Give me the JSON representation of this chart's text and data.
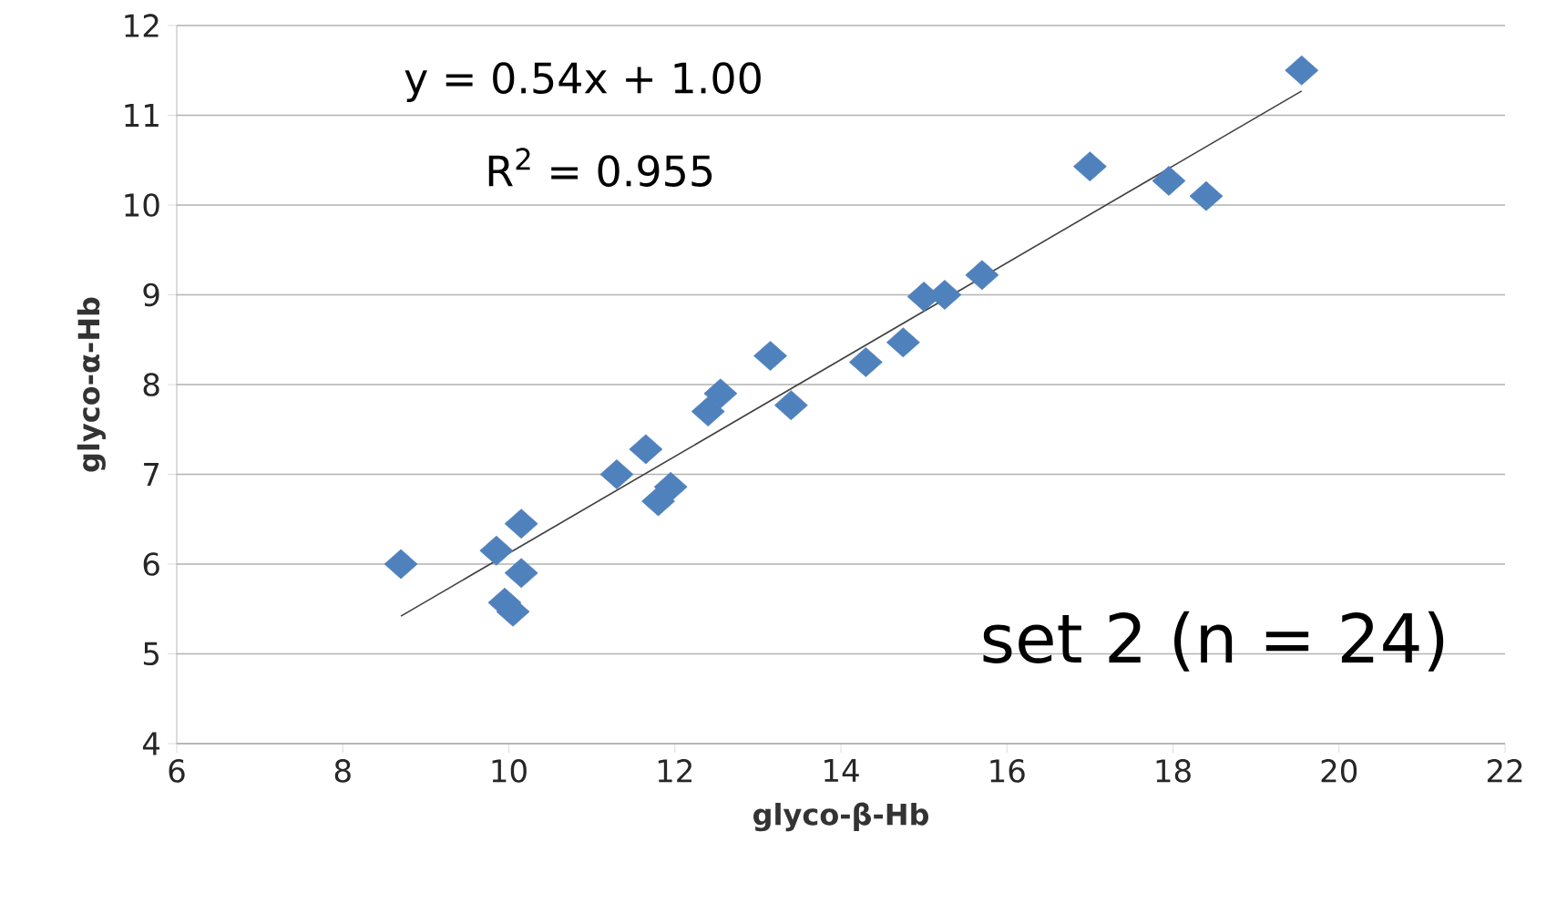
{
  "chart_data": {
    "type": "scatter",
    "xlabel": "glyco-β-Hb",
    "ylabel": "glyco-α-Hb",
    "xlim": [
      6,
      22
    ],
    "ylim": [
      4,
      12
    ],
    "xticks": [
      6,
      8,
      10,
      12,
      14,
      16,
      18,
      20,
      22
    ],
    "yticks": [
      4,
      5,
      6,
      7,
      8,
      9,
      10,
      11,
      12
    ],
    "grid": "y",
    "marker": "diamond",
    "series": [
      {
        "color": "#4f81bd",
        "x": [
          8.7,
          9.85,
          10.15,
          9.95,
          10.05,
          10.15,
          11.3,
          11.65,
          11.8,
          11.95,
          12.4,
          12.55,
          13.15,
          13.4,
          14.3,
          14.75,
          15.0,
          15.25,
          15.7,
          17.0,
          17.95,
          18.4,
          19.55
        ],
        "values": [
          6.0,
          6.15,
          6.45,
          5.57,
          5.47,
          5.9,
          7.0,
          7.28,
          6.7,
          6.86,
          7.7,
          7.9,
          8.32,
          7.77,
          8.25,
          8.47,
          8.98,
          9.0,
          9.22,
          10.43,
          10.27,
          10.1,
          11.5
        ]
      },
      {
        "type": "line",
        "color": "#404040",
        "marker": "none",
        "x": [
          8.7,
          19.55
        ],
        "values": [
          5.42,
          11.27
        ]
      }
    ],
    "annotations": [
      "y = 0.54x + 1.00",
      "R$^{2}$ = 0.955",
      "set 2 (n = 24)"
    ]
  }
}
